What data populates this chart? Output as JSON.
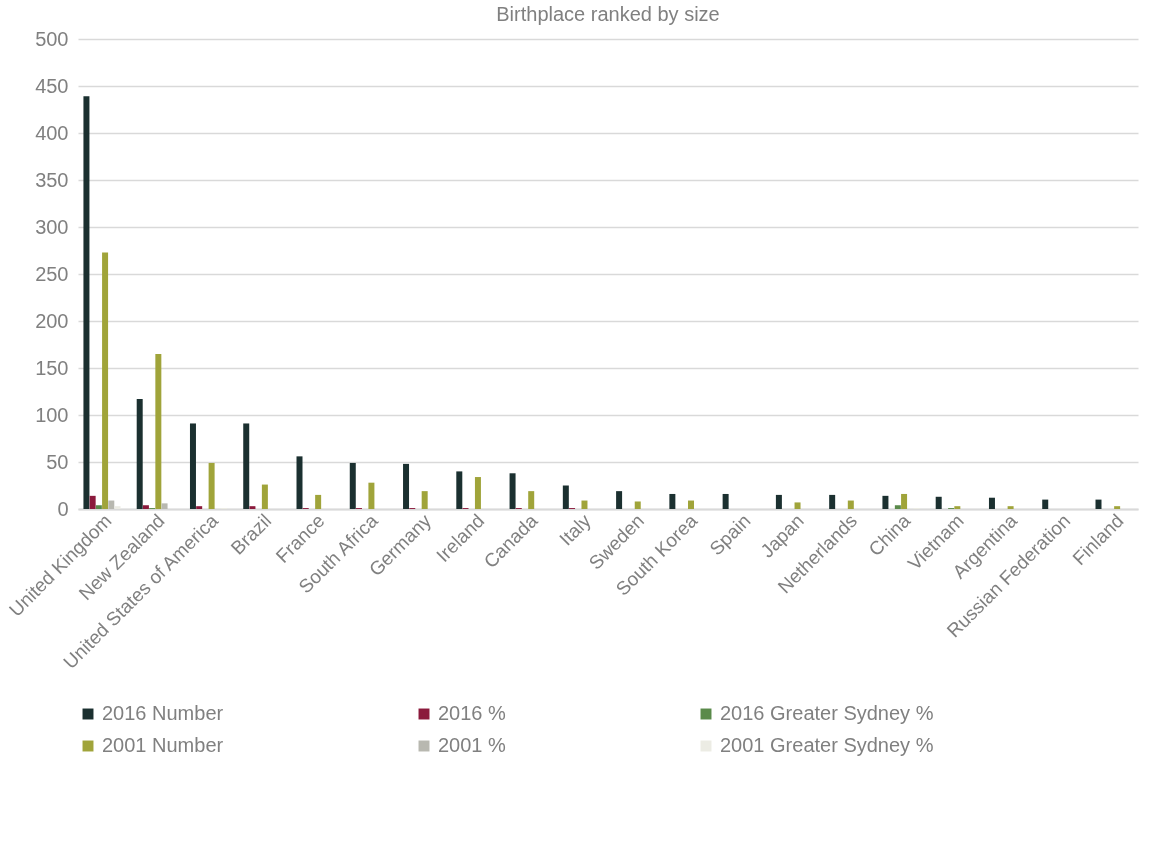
{
  "chart_data": {
    "type": "bar",
    "title": "Birthplace ranked by size",
    "categories": [
      "United Kingdom",
      "New Zealand",
      "United States of America",
      "Brazil",
      "France",
      "South Africa",
      "Germany",
      "Ireland",
      "Canada",
      "Italy",
      "Sweden",
      "South Korea",
      "Spain",
      "Japan",
      "Netherlands",
      "China",
      "Vietnam",
      "Argentina",
      "Russian Federation",
      "Finland"
    ],
    "series": [
      {
        "name": "2016 Number",
        "color": "#1b3030",
        "values": [
          439,
          117,
          91,
          91,
          56,
          49,
          48,
          40,
          38,
          25,
          19,
          16,
          16,
          15,
          15,
          14,
          13,
          12,
          10,
          10
        ]
      },
      {
        "name": "2016 %",
        "color": "#8b1a3c",
        "values": [
          14,
          4,
          3,
          3,
          1,
          1,
          1,
          1,
          1,
          1,
          0,
          0,
          0,
          0,
          0,
          0,
          0,
          0,
          0,
          0
        ]
      },
      {
        "name": "2016 Greater Sydney %",
        "color": "#5a8a4a",
        "values": [
          4,
          1,
          0,
          0,
          0,
          0,
          0,
          0,
          0,
          0,
          0,
          0,
          0,
          0,
          0,
          4,
          1,
          0,
          0,
          0
        ]
      },
      {
        "name": "2001 Number",
        "color": "#a0a43a",
        "values": [
          273,
          165,
          49,
          26,
          15,
          28,
          19,
          34,
          19,
          9,
          8,
          9,
          0,
          7,
          9,
          16,
          3,
          3,
          0,
          3
        ]
      },
      {
        "name": "2001 %",
        "color": "#b8b8b0",
        "values": [
          9,
          6,
          0,
          0,
          0,
          0,
          0,
          null,
          null,
          0,
          0,
          0,
          0,
          0,
          0,
          0,
          null,
          0,
          0,
          0
        ]
      },
      {
        "name": "2001 Greater Sydney %",
        "color": "#ecece4",
        "values": [
          3,
          null,
          1,
          0,
          0,
          0,
          0,
          0,
          0,
          0,
          0,
          0,
          0,
          0,
          0,
          1,
          null,
          0,
          0,
          0
        ]
      }
    ],
    "ylim": [
      0,
      500
    ],
    "yticks": [
      0,
      50,
      100,
      150,
      200,
      250,
      300,
      350,
      400,
      450,
      500
    ],
    "grid": "y",
    "legend": "bottom"
  }
}
